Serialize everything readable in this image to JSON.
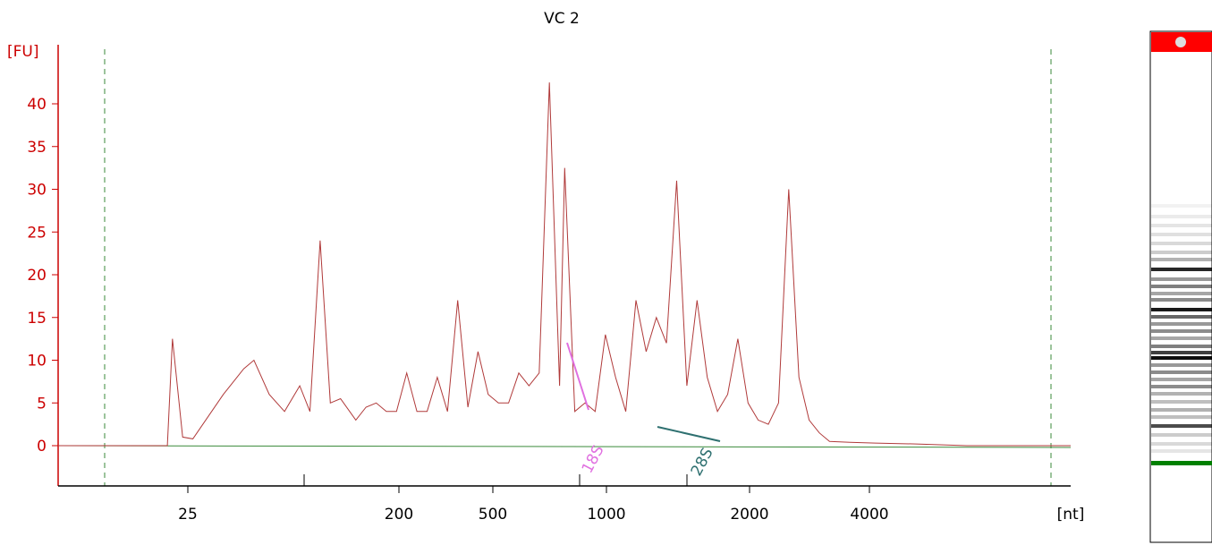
{
  "chart_data": {
    "type": "line",
    "title": "VC 2",
    "ylabel": "[FU]",
    "xlabel": "[nt]",
    "ylim": [
      -5,
      45
    ],
    "yticks": [
      0,
      5,
      10,
      15,
      20,
      25,
      30,
      35,
      40
    ],
    "xticks": [
      "25",
      "200",
      "500",
      "1000",
      "2000",
      "4000"
    ],
    "colors": {
      "axis_y": "#cc0000",
      "axis_x": "#000000",
      "trace": "#b03a3a",
      "baseline": "#3a8a3a",
      "marker_18s": "#e070e0",
      "marker_28s": "#2e7070",
      "gel_top_marker": "#ff0000",
      "gel_lower_marker": "#008000"
    },
    "markers": [
      {
        "label": "18S",
        "x": 915,
        "y_top": 12,
        "y_bottom": 4.5,
        "color": "#e070e0"
      },
      {
        "label": "28S",
        "x": 1550,
        "y_top": 2.2,
        "y_bottom": 0.4,
        "color": "#2e7070"
      }
    ],
    "trace_points": [
      [
        0,
        0
      ],
      [
        30,
        0
      ],
      [
        40,
        12.5
      ],
      [
        60,
        1
      ],
      [
        80,
        0.8
      ],
      [
        140,
        6
      ],
      [
        180,
        9
      ],
      [
        200,
        10
      ],
      [
        230,
        6
      ],
      [
        260,
        4
      ],
      [
        290,
        7
      ],
      [
        310,
        4
      ],
      [
        330,
        24
      ],
      [
        350,
        5
      ],
      [
        370,
        5.5
      ],
      [
        400,
        3
      ],
      [
        420,
        4.5
      ],
      [
        440,
        5
      ],
      [
        460,
        4
      ],
      [
        480,
        4
      ],
      [
        500,
        8.5
      ],
      [
        520,
        4
      ],
      [
        540,
        4
      ],
      [
        560,
        8
      ],
      [
        580,
        4
      ],
      [
        600,
        17
      ],
      [
        620,
        4.5
      ],
      [
        640,
        11
      ],
      [
        660,
        6
      ],
      [
        680,
        5
      ],
      [
        700,
        5
      ],
      [
        720,
        8.5
      ],
      [
        740,
        7
      ],
      [
        760,
        8.5
      ],
      [
        780,
        42.5
      ],
      [
        800,
        7
      ],
      [
        810,
        32.5
      ],
      [
        830,
        4
      ],
      [
        850,
        5
      ],
      [
        870,
        4
      ],
      [
        890,
        13
      ],
      [
        910,
        8
      ],
      [
        930,
        4
      ],
      [
        950,
        17
      ],
      [
        970,
        11
      ],
      [
        990,
        15
      ],
      [
        1010,
        12
      ],
      [
        1030,
        31
      ],
      [
        1050,
        7
      ],
      [
        1070,
        17
      ],
      [
        1090,
        8
      ],
      [
        1110,
        4
      ],
      [
        1130,
        6
      ],
      [
        1150,
        12.5
      ],
      [
        1170,
        5
      ],
      [
        1190,
        3
      ],
      [
        1210,
        2.5
      ],
      [
        1230,
        5
      ],
      [
        1250,
        30
      ],
      [
        1270,
        8
      ],
      [
        1290,
        3
      ],
      [
        1310,
        1.5
      ],
      [
        1330,
        0.5
      ],
      [
        1370,
        0.4
      ],
      [
        1420,
        0.3
      ],
      [
        1500,
        0.2
      ],
      [
        1600,
        0
      ],
      [
        1700,
        0
      ],
      [
        1800,
        0
      ]
    ]
  }
}
